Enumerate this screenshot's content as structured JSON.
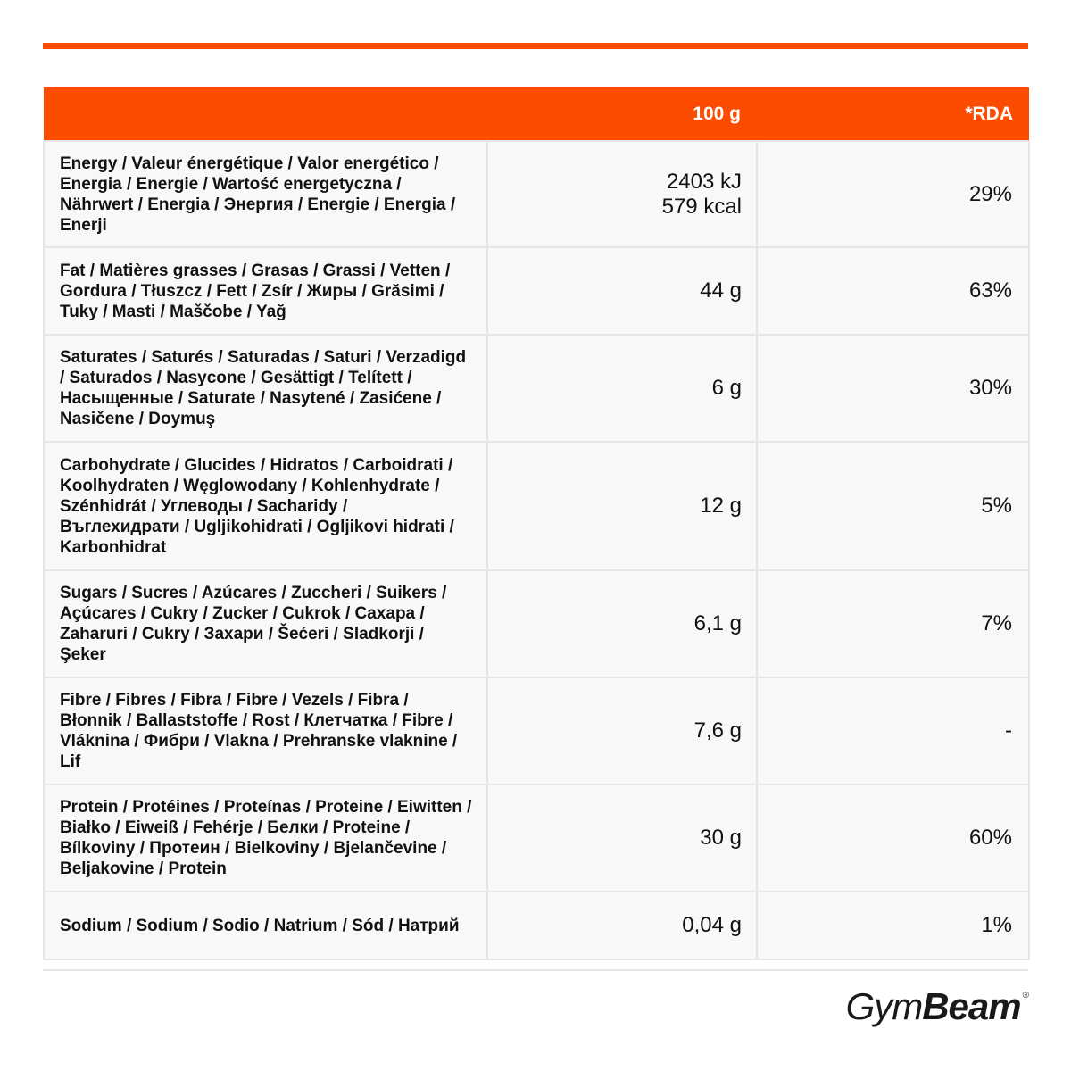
{
  "header": {
    "col_blank": "",
    "col_100g": "100 g",
    "col_rda": "*RDA"
  },
  "rows": [
    {
      "name": "Energy / Valeur énergétique / Valor energético / Energia / Energie / Wartość energetyczna / Nährwert / Energia / Энергия / Energie / Energia / Enerji",
      "value_line1": "2403 kJ",
      "value_line2": "579 kcal",
      "rda": "29%"
    },
    {
      "name": "Fat / Matières grasses / Grasas / Grassi / Vetten / Gordura / Tłuszcz / Fett / Zsír / Жиры / Grăsimi / Tuky / Masti / Maščobe / Yağ",
      "value": "44 g",
      "rda": "63%"
    },
    {
      "name": "Saturates / Saturés / Saturadas / Saturi / Verzadigd / Saturados / Nasycone / Gesättigt / Telített / Насыщенные / Saturate / Nasytené / Zasićene / Nasičene / Doymuş",
      "value": "6 g",
      "rda": "30%"
    },
    {
      "name": "Carbohydrate / Glucides / Hidratos / Carboidrati / Koolhydraten / Węglowodany / Kohlenhydrate / Szénhidrát / Углеводы / Sacharidy / Въглехидрати / Ugljikohidrati / Ogljikovi hidrati / Karbonhidrat",
      "value": "12 g",
      "rda": "5%"
    },
    {
      "name": "Sugars / Sucres / Azúcares / Zuccheri / Suikers / Açúcares / Cukry / Zucker / Cukrok / Caxapa / Zaharuri / Cukry / Захари / Šećeri / Sladkorji / Şeker",
      "value": "6,1 g",
      "rda": "7%"
    },
    {
      "name": "Fibre / Fibres / Fibra / Fibre / Vezels / Fibra / Błonnik / Ballaststoffe / Rost / Клетчатка / Fibre / Vláknina / Фибри / Vlakna / Prehranske vlaknine / Lif",
      "value": "7,6 g",
      "rda": "-"
    },
    {
      "name": "Protein / Protéines / Proteínas / Proteine / Eiwitten / Białko / Eiweiß / Fehérje / Белки / Proteine / Bílkoviny / Протеин / Bielkoviny / Bjelančevine / Beljakovine / Protein",
      "value": "30 g",
      "rda": "60%"
    },
    {
      "name": "Sodium / Sodium / Sodio / Natrium / Sód / Натрий",
      "value": "0,04 g",
      "rda": "1%"
    }
  ],
  "logo": {
    "part1": "Gym",
    "part2": "Beam",
    "mark": "®"
  },
  "colors": {
    "accent": "#fc4c02",
    "cell_bg": "#f8f8f8",
    "border": "#e5e5e5"
  }
}
